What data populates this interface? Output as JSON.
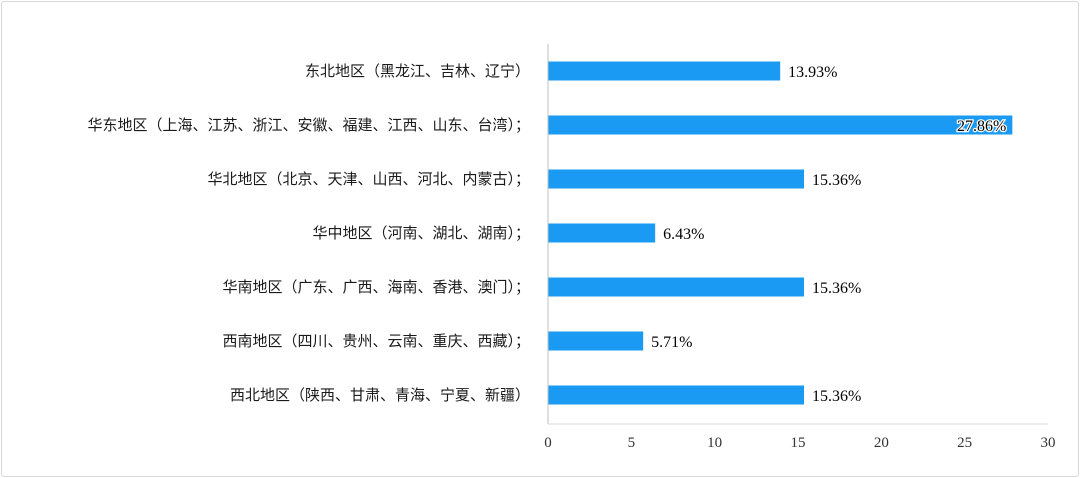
{
  "chart_data": {
    "type": "bar",
    "orientation": "horizontal",
    "categories": [
      "东北地区（黑龙江、吉林、辽宁）",
      "华东地区（上海、江苏、浙江、安徽、福建、江西、山东、台湾）；",
      "华北地区（北京、天津、山西、河北、内蒙古）；",
      "华中地区（河南、湖北、湖南）；",
      "华南地区（广东、广西、海南、香港、澳门）；",
      "西南地区（四川、贵州、云南、重庆、西藏）；",
      "西北地区（陕西、甘肃、青海、宁夏、新疆）"
    ],
    "values": [
      13.93,
      27.86,
      15.36,
      6.43,
      15.36,
      5.71,
      15.36
    ],
    "data_labels": [
      "13.93%",
      "27.86%",
      "15.36%",
      "6.43%",
      "15.36%",
      "5.71%",
      "15.36%"
    ],
    "xlim": [
      0,
      30
    ],
    "xticks": [
      0,
      5,
      10,
      15,
      20,
      25,
      30
    ],
    "bar_color": "#1a9af2",
    "grid": false,
    "legend": "none",
    "title": "",
    "xlabel": "",
    "ylabel": ""
  }
}
